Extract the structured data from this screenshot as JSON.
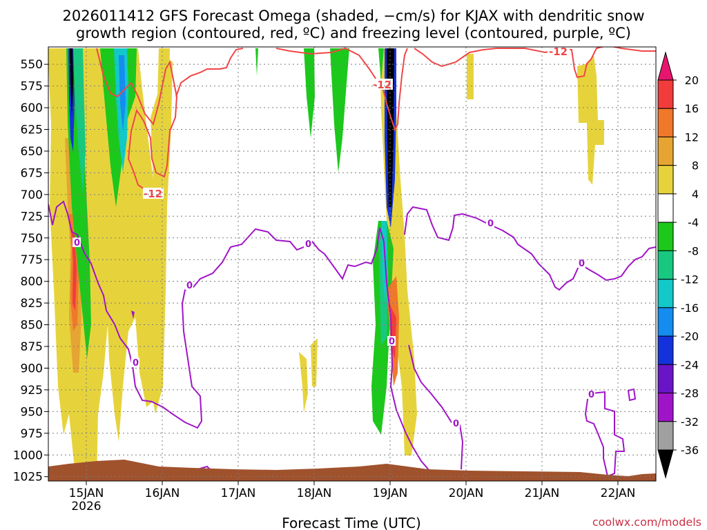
{
  "chart_data": {
    "type": "heatmap",
    "title_line1": "2026011412 GFS Forecast Omega (shaded, −cm/s) for KJAX with dendritic snow",
    "title_line2": "growth region (contoured, red, ºC) and freezing level (contoured, purple, ºC)",
    "xlabel": "Forecast Time (UTC)",
    "credit": "coolwx.com/models",
    "x_range_hours": [
      -12,
      180
    ],
    "x_ticks": [
      {
        "hour": 0,
        "label": "15JAN",
        "sublabel": "2026"
      },
      {
        "hour": 24,
        "label": "16JAN"
      },
      {
        "hour": 48,
        "label": "17JAN"
      },
      {
        "hour": 72,
        "label": "18JAN"
      },
      {
        "hour": 96,
        "label": "19JAN"
      },
      {
        "hour": 120,
        "label": "20JAN"
      },
      {
        "hour": 144,
        "label": "21JAN"
      },
      {
        "hour": 168,
        "label": "22JAN"
      }
    ],
    "y_range_hpa": [
      530,
      1030
    ],
    "y_ticks": [
      550,
      575,
      600,
      625,
      650,
      675,
      700,
      725,
      750,
      775,
      800,
      825,
      850,
      875,
      900,
      925,
      950,
      975,
      1000,
      1025
    ],
    "grid": true,
    "colorbar": {
      "levels": [
        "20",
        "16",
        "12",
        "8",
        "4",
        "-4",
        "-8",
        "-12",
        "-16",
        "-20",
        "-24",
        "-28",
        "-32",
        "-36"
      ],
      "colors": [
        "#e8156e",
        "#f23c3c",
        "#f0782a",
        "#e6a532",
        "#e6d33c",
        "#ffffff",
        "#1cc81c",
        "#18c880",
        "#12c8c8",
        "#148cf0",
        "#1432dc",
        "#6a14c8",
        "#a014c8",
        "#a0a0a0",
        "#000000"
      ]
    },
    "contours": {
      "red_dgz": {
        "label": "-12",
        "color": "#f04646"
      },
      "purple_freezing": {
        "label": "0",
        "color": "#a014c8"
      }
    },
    "omega_features": [
      {
        "hour": -1,
        "p_top": 545,
        "p_bottom": 720,
        "value": "-36 to -20",
        "note": "dark core 15JAN"
      },
      {
        "hour": 6,
        "p_top": 545,
        "p_bottom": 640,
        "value": "-16 to -12"
      },
      {
        "hour": 0,
        "p_top": 690,
        "p_bottom": 850,
        "value": "12 to 20"
      },
      {
        "hour": 85,
        "p_top": 530,
        "p_bottom": 690,
        "value": "-36",
        "note": "dark core 18JAN-19JAN"
      },
      {
        "hour": 84,
        "p_top": 760,
        "p_bottom": 960,
        "value": "-8 to -4"
      },
      {
        "hour": 87,
        "p_top": 820,
        "p_bottom": 1000,
        "value": "8 to 16"
      },
      {
        "hour": 153,
        "p_top": 560,
        "p_bottom": 660,
        "value": "4 to 8"
      }
    ],
    "contour_labels": [
      {
        "text": "-12",
        "hour": 15,
        "p": 665,
        "color": "red"
      },
      {
        "text": "-12",
        "hour": 81,
        "p": 565,
        "color": "red"
      },
      {
        "text": "-12",
        "hour": 134,
        "p": 534,
        "color": "red"
      },
      {
        "text": "0",
        "hour": 0,
        "p": 718,
        "color": "purple"
      },
      {
        "text": "0",
        "hour": 32,
        "p": 775,
        "color": "purple"
      },
      {
        "text": "0",
        "hour": 65,
        "p": 720,
        "color": "purple"
      },
      {
        "text": "0",
        "hour": 124,
        "p": 703,
        "color": "purple"
      },
      {
        "text": "0",
        "hour": 148,
        "p": 742,
        "color": "purple"
      },
      {
        "text": "0",
        "hour": 4,
        "p": 868,
        "color": "purple"
      },
      {
        "text": "0",
        "hour": 87,
        "p": 839,
        "color": "purple"
      },
      {
        "text": "0",
        "hour": 104,
        "p": 952,
        "color": "purple"
      },
      {
        "text": "0",
        "hour": 150,
        "p": 910,
        "color": "purple"
      }
    ],
    "surface_fill": {
      "p_top": 1018,
      "color": "#a0522d"
    }
  }
}
